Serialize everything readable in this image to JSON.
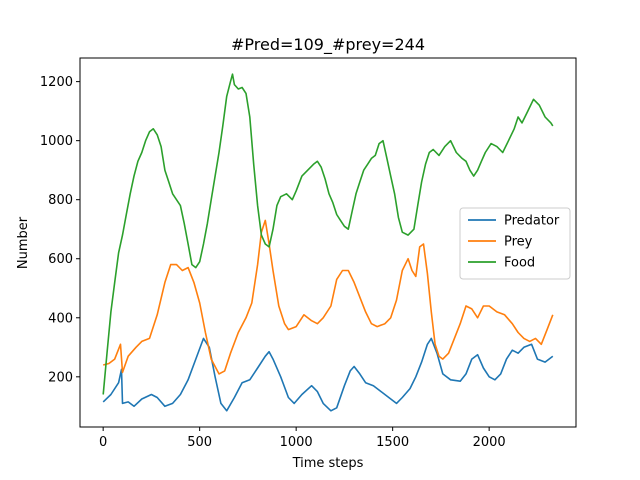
{
  "chart_data": {
    "type": "line",
    "title": "#Pred=109_#prey=244",
    "xlabel": "Time steps",
    "ylabel": "Number",
    "xlim": [
      -120,
      2450
    ],
    "ylim": [
      30,
      1280
    ],
    "xticks": [
      0,
      500,
      1000,
      1500,
      2000
    ],
    "yticks": [
      200,
      400,
      600,
      800,
      1000,
      1200
    ],
    "grid": false,
    "legend_position": "center right",
    "series": [
      {
        "name": "Predator",
        "color": "#1f77b4",
        "points": [
          [
            0,
            115
          ],
          [
            40,
            140
          ],
          [
            80,
            180
          ],
          [
            95,
            225
          ],
          [
            100,
            110
          ],
          [
            130,
            115
          ],
          [
            160,
            100
          ],
          [
            200,
            125
          ],
          [
            250,
            140
          ],
          [
            280,
            130
          ],
          [
            320,
            100
          ],
          [
            360,
            110
          ],
          [
            400,
            140
          ],
          [
            440,
            190
          ],
          [
            480,
            260
          ],
          [
            520,
            330
          ],
          [
            550,
            300
          ],
          [
            580,
            200
          ],
          [
            610,
            110
          ],
          [
            640,
            85
          ],
          [
            680,
            130
          ],
          [
            720,
            180
          ],
          [
            760,
            190
          ],
          [
            800,
            230
          ],
          [
            840,
            270
          ],
          [
            860,
            285
          ],
          [
            880,
            260
          ],
          [
            920,
            200
          ],
          [
            960,
            130
          ],
          [
            990,
            110
          ],
          [
            1030,
            140
          ],
          [
            1080,
            170
          ],
          [
            1110,
            150
          ],
          [
            1140,
            110
          ],
          [
            1180,
            85
          ],
          [
            1210,
            95
          ],
          [
            1250,
            170
          ],
          [
            1280,
            220
          ],
          [
            1300,
            235
          ],
          [
            1330,
            210
          ],
          [
            1360,
            180
          ],
          [
            1400,
            170
          ],
          [
            1440,
            150
          ],
          [
            1480,
            130
          ],
          [
            1520,
            110
          ],
          [
            1550,
            130
          ],
          [
            1590,
            160
          ],
          [
            1620,
            200
          ],
          [
            1650,
            250
          ],
          [
            1680,
            310
          ],
          [
            1700,
            330
          ],
          [
            1730,
            280
          ],
          [
            1760,
            210
          ],
          [
            1800,
            190
          ],
          [
            1850,
            185
          ],
          [
            1880,
            210
          ],
          [
            1910,
            260
          ],
          [
            1940,
            275
          ],
          [
            1970,
            230
          ],
          [
            2000,
            200
          ],
          [
            2030,
            190
          ],
          [
            2060,
            210
          ],
          [
            2090,
            260
          ],
          [
            2120,
            290
          ],
          [
            2150,
            280
          ],
          [
            2180,
            300
          ],
          [
            2220,
            310
          ],
          [
            2250,
            260
          ],
          [
            2290,
            250
          ],
          [
            2330,
            270
          ]
        ]
      },
      {
        "name": "Prey",
        "color": "#ff7f0e",
        "points": [
          [
            0,
            240
          ],
          [
            30,
            245
          ],
          [
            60,
            260
          ],
          [
            90,
            310
          ],
          [
            100,
            215
          ],
          [
            130,
            270
          ],
          [
            170,
            300
          ],
          [
            200,
            320
          ],
          [
            240,
            330
          ],
          [
            280,
            410
          ],
          [
            320,
            520
          ],
          [
            350,
            580
          ],
          [
            380,
            580
          ],
          [
            410,
            560
          ],
          [
            440,
            570
          ],
          [
            470,
            520
          ],
          [
            500,
            450
          ],
          [
            530,
            350
          ],
          [
            560,
            260
          ],
          [
            600,
            210
          ],
          [
            630,
            220
          ],
          [
            660,
            280
          ],
          [
            700,
            350
          ],
          [
            740,
            400
          ],
          [
            770,
            450
          ],
          [
            800,
            580
          ],
          [
            820,
            690
          ],
          [
            840,
            730
          ],
          [
            860,
            650
          ],
          [
            880,
            560
          ],
          [
            910,
            440
          ],
          [
            940,
            380
          ],
          [
            960,
            360
          ],
          [
            1000,
            370
          ],
          [
            1040,
            410
          ],
          [
            1080,
            390
          ],
          [
            1110,
            380
          ],
          [
            1140,
            400
          ],
          [
            1180,
            440
          ],
          [
            1210,
            530
          ],
          [
            1240,
            560
          ],
          [
            1270,
            560
          ],
          [
            1300,
            520
          ],
          [
            1330,
            470
          ],
          [
            1360,
            420
          ],
          [
            1390,
            380
          ],
          [
            1420,
            370
          ],
          [
            1460,
            380
          ],
          [
            1490,
            400
          ],
          [
            1520,
            460
          ],
          [
            1550,
            560
          ],
          [
            1580,
            600
          ],
          [
            1600,
            560
          ],
          [
            1620,
            540
          ],
          [
            1640,
            640
          ],
          [
            1660,
            650
          ],
          [
            1680,
            550
          ],
          [
            1700,
            420
          ],
          [
            1720,
            310
          ],
          [
            1740,
            270
          ],
          [
            1760,
            260
          ],
          [
            1790,
            280
          ],
          [
            1820,
            330
          ],
          [
            1850,
            380
          ],
          [
            1880,
            440
          ],
          [
            1910,
            430
          ],
          [
            1940,
            400
          ],
          [
            1970,
            440
          ],
          [
            2000,
            440
          ],
          [
            2040,
            420
          ],
          [
            2080,
            410
          ],
          [
            2120,
            380
          ],
          [
            2150,
            350
          ],
          [
            2180,
            330
          ],
          [
            2210,
            320
          ],
          [
            2240,
            330
          ],
          [
            2270,
            310
          ],
          [
            2300,
            360
          ],
          [
            2330,
            410
          ]
        ]
      },
      {
        "name": "Food",
        "color": "#2ca02c",
        "points": [
          [
            0,
            140
          ],
          [
            20,
            280
          ],
          [
            40,
            420
          ],
          [
            60,
            520
          ],
          [
            80,
            620
          ],
          [
            100,
            680
          ],
          [
            120,
            750
          ],
          [
            140,
            820
          ],
          [
            160,
            880
          ],
          [
            180,
            930
          ],
          [
            200,
            960
          ],
          [
            220,
            1000
          ],
          [
            240,
            1030
          ],
          [
            260,
            1040
          ],
          [
            280,
            1020
          ],
          [
            300,
            980
          ],
          [
            320,
            900
          ],
          [
            340,
            860
          ],
          [
            360,
            820
          ],
          [
            380,
            800
          ],
          [
            400,
            780
          ],
          [
            420,
            720
          ],
          [
            440,
            650
          ],
          [
            460,
            580
          ],
          [
            480,
            570
          ],
          [
            500,
            590
          ],
          [
            520,
            650
          ],
          [
            540,
            720
          ],
          [
            560,
            800
          ],
          [
            580,
            880
          ],
          [
            600,
            960
          ],
          [
            620,
            1050
          ],
          [
            640,
            1150
          ],
          [
            660,
            1200
          ],
          [
            670,
            1225
          ],
          [
            680,
            1190
          ],
          [
            700,
            1175
          ],
          [
            720,
            1180
          ],
          [
            740,
            1160
          ],
          [
            760,
            1080
          ],
          [
            780,
            920
          ],
          [
            800,
            780
          ],
          [
            820,
            680
          ],
          [
            840,
            650
          ],
          [
            860,
            640
          ],
          [
            880,
            700
          ],
          [
            900,
            780
          ],
          [
            920,
            810
          ],
          [
            950,
            820
          ],
          [
            980,
            800
          ],
          [
            1000,
            830
          ],
          [
            1030,
            880
          ],
          [
            1060,
            900
          ],
          [
            1090,
            920
          ],
          [
            1110,
            930
          ],
          [
            1130,
            910
          ],
          [
            1150,
            870
          ],
          [
            1170,
            820
          ],
          [
            1190,
            790
          ],
          [
            1210,
            750
          ],
          [
            1230,
            730
          ],
          [
            1250,
            710
          ],
          [
            1270,
            700
          ],
          [
            1290,
            760
          ],
          [
            1310,
            820
          ],
          [
            1330,
            860
          ],
          [
            1350,
            900
          ],
          [
            1370,
            920
          ],
          [
            1390,
            940
          ],
          [
            1410,
            950
          ],
          [
            1430,
            990
          ],
          [
            1450,
            1000
          ],
          [
            1470,
            940
          ],
          [
            1490,
            880
          ],
          [
            1510,
            820
          ],
          [
            1530,
            740
          ],
          [
            1550,
            690
          ],
          [
            1580,
            680
          ],
          [
            1610,
            700
          ],
          [
            1630,
            780
          ],
          [
            1650,
            860
          ],
          [
            1670,
            920
          ],
          [
            1690,
            960
          ],
          [
            1710,
            970
          ],
          [
            1740,
            950
          ],
          [
            1770,
            980
          ],
          [
            1800,
            1000
          ],
          [
            1830,
            960
          ],
          [
            1860,
            940
          ],
          [
            1880,
            930
          ],
          [
            1900,
            900
          ],
          [
            1920,
            880
          ],
          [
            1940,
            900
          ],
          [
            1960,
            930
          ],
          [
            1980,
            960
          ],
          [
            2010,
            990
          ],
          [
            2040,
            980
          ],
          [
            2070,
            960
          ],
          [
            2100,
            1000
          ],
          [
            2130,
            1040
          ],
          [
            2150,
            1080
          ],
          [
            2170,
            1060
          ],
          [
            2200,
            1100
          ],
          [
            2230,
            1140
          ],
          [
            2260,
            1120
          ],
          [
            2290,
            1080
          ],
          [
            2320,
            1060
          ],
          [
            2330,
            1050
          ]
        ]
      }
    ]
  }
}
